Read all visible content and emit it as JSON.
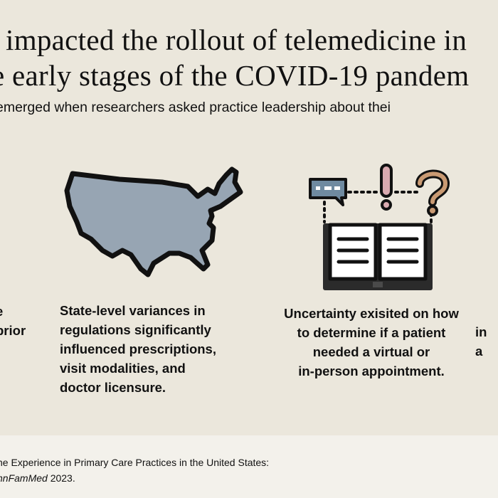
{
  "title": {
    "line1": "impacted the rollout of telemedicine in",
    "line2": "e early stages of the COVID-19 pandem"
  },
  "subtitle": "emerged when researchers asked practice leadership about thei",
  "columns": [
    {
      "icon": "partial-column-icon",
      "text": "e\nprior"
    },
    {
      "icon": "us-map-icon",
      "text": "State-level variances in\nregulations significantly\ninfluenced prescriptions,\nvisit modalities, and\ndoctor licensure."
    },
    {
      "icon": "book-question-icon",
      "text": "Uncertainty exisited on how\nto determine if a patient\nneeded a virtual or\nin-person appointment."
    },
    {
      "icon": "partial-column-icon",
      "text": "in\na"
    }
  ],
  "footer": {
    "line1": "ne Experience in Primary Care Practices in the United States:",
    "journal": "nnFamMed",
    "year": " 2023."
  },
  "colors": {
    "background": "#ebe7dc",
    "footer": "#f3f1eb",
    "map_fill": "#97a5b3",
    "speech_bubble": "#6f8aa0",
    "exclamation": "#d9aab0",
    "question": "#c99a73",
    "book": "#2b2b2b"
  }
}
